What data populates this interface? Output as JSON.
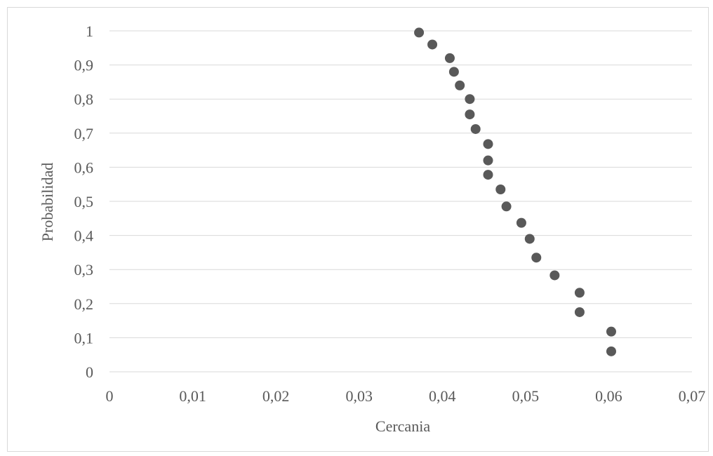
{
  "chart_data": {
    "type": "scatter",
    "title": "",
    "xlabel": "Cercania",
    "ylabel": "Probabilidad",
    "xlim": [
      0,
      0.07
    ],
    "ylim": [
      0,
      1
    ],
    "x_ticks": [
      "0",
      "0,01",
      "0,02",
      "0,03",
      "0,04",
      "0,05",
      "0,06",
      "0,07"
    ],
    "y_ticks": [
      "0",
      "0,1",
      "0,2",
      "0,3",
      "0,4",
      "0,5",
      "0,6",
      "0,7",
      "0,8",
      "0,9",
      "1"
    ],
    "x_tick_values": [
      0,
      0.01,
      0.02,
      0.03,
      0.04,
      0.05,
      0.06,
      0.07
    ],
    "y_tick_values": [
      0,
      0.1,
      0.2,
      0.3,
      0.4,
      0.5,
      0.6,
      0.7,
      0.8,
      0.9,
      1
    ],
    "grid": "horizontal",
    "marker_color": "#595959",
    "gridline_color": "#d9d9d9",
    "series": [
      {
        "x": [
          0.0372,
          0.0388,
          0.0409,
          0.0414,
          0.0421,
          0.0433,
          0.0433,
          0.044,
          0.0455,
          0.0455,
          0.0455,
          0.047,
          0.0477,
          0.0495,
          0.0505,
          0.0513,
          0.0535,
          0.0565,
          0.0565,
          0.0603,
          0.0603
        ],
        "y": [
          0.995,
          0.96,
          0.92,
          0.88,
          0.84,
          0.8,
          0.755,
          0.712,
          0.668,
          0.62,
          0.578,
          0.535,
          0.485,
          0.437,
          0.39,
          0.335,
          0.283,
          0.232,
          0.175,
          0.118,
          0.06
        ]
      }
    ]
  }
}
